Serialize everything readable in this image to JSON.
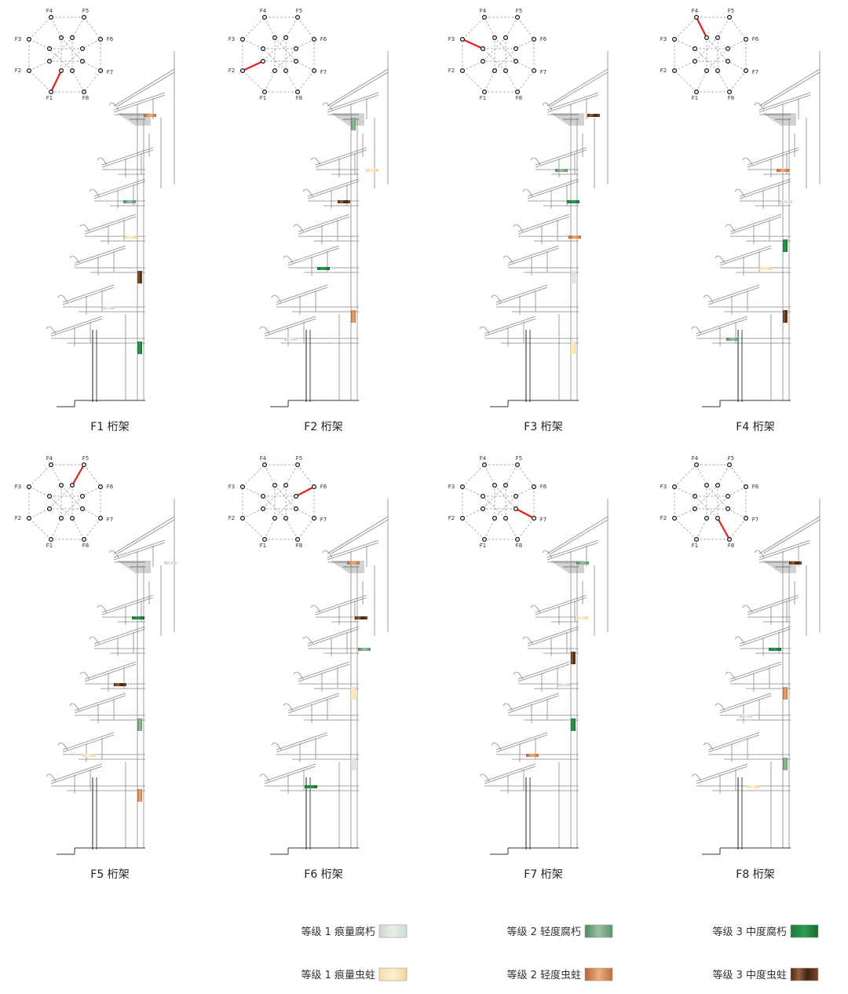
{
  "node_labels": [
    "F1",
    "F2",
    "F3",
    "F4",
    "F5",
    "F6",
    "F7",
    "F8"
  ],
  "panels": [
    {
      "caption": "F1 桁架"
    },
    {
      "caption": "F2 桁架"
    },
    {
      "caption": "F3 桁架"
    },
    {
      "caption": "F4 桁架"
    },
    {
      "caption": "F5 桁架"
    },
    {
      "caption": "F6 桁架"
    },
    {
      "caption": "F7 桁架"
    },
    {
      "caption": "F8 桁架"
    }
  ],
  "legend": [
    {
      "label": "等级 1 痕量腐朽"
    },
    {
      "label": "等级 2 轻度腐朽"
    },
    {
      "label": "等级 3 中度腐朽"
    },
    {
      "label": "等级 1 痕量虫蛀"
    },
    {
      "label": "等级 2 轻度虫蛀"
    },
    {
      "label": "等级 3 中度虫蛀"
    }
  ]
}
